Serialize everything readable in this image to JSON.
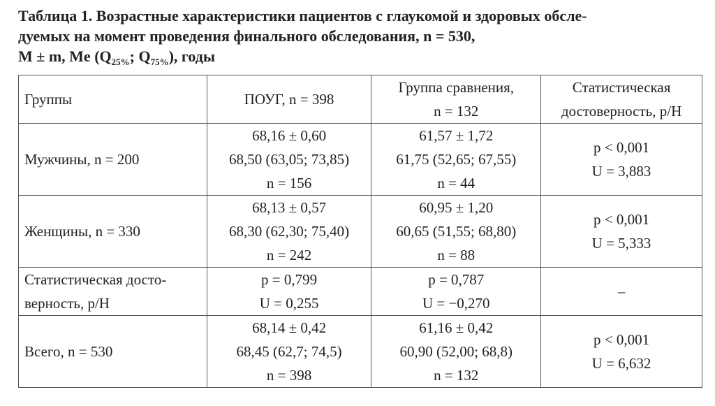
{
  "title": {
    "lines": [
      "Таблица 1. Возрастные характеристики пациентов с глаукомой и здоровых обсле-",
      "дуемых на момент проведения финального обследования, n = 530,"
    ],
    "last_line": [
      "M ± m, Me (Q",
      "25%",
      "; Q",
      "75%",
      "), годы"
    ]
  },
  "table": {
    "header": [
      [
        "Группы"
      ],
      [
        "ПОУГ, n = 398"
      ],
      [
        "Группа сравнения,",
        "n = 132"
      ],
      [
        "Статистическая",
        "достоверность, p/H"
      ]
    ],
    "rows": [
      [
        [
          "Мужчины, n = 200"
        ],
        [
          "68,16 ± 0,60",
          "68,50 (63,05; 73,85)",
          "n = 156"
        ],
        [
          "61,57 ± 1,72",
          "61,75 (52,65; 67,55)",
          "n = 44"
        ],
        [
          "p < 0,001",
          "U = 3,883"
        ]
      ],
      [
        [
          "Женщины, n = 330"
        ],
        [
          "68,13 ± 0,57",
          "68,30 (62,30; 75,40)",
          "n = 242"
        ],
        [
          "60,95 ± 1,20",
          "60,65 (51,55; 68,80)",
          "n = 88"
        ],
        [
          "p < 0,001",
          "U = 5,333"
        ]
      ],
      [
        [
          "Статистическая досто-",
          "верность, p/H"
        ],
        [
          "p = 0,799",
          "U = 0,255"
        ],
        [
          "p = 0,787",
          "U = −0,270"
        ],
        [
          "–"
        ]
      ],
      [
        [
          "Всего, n = 530"
        ],
        [
          "68,14 ± 0,42",
          "68,45 (62,7; 74,5)",
          "n = 398"
        ],
        [
          "61,16 ± 0,42",
          "60,90 (52,00; 68,8)",
          "n = 132"
        ],
        [
          "p < 0,001",
          "U = 6,632"
        ]
      ]
    ]
  }
}
